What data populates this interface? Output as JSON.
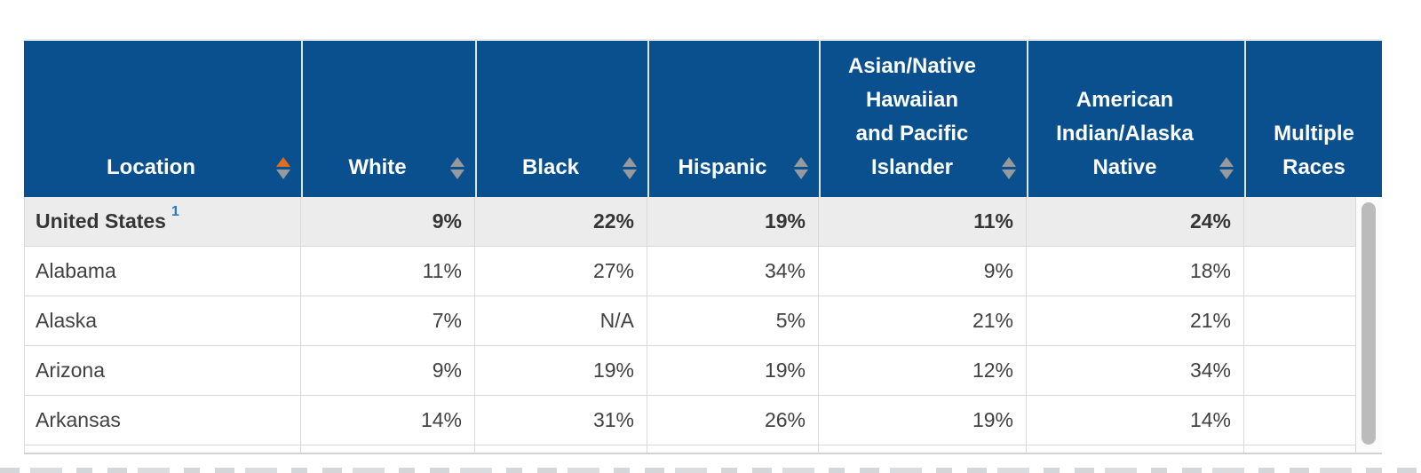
{
  "table": {
    "columns": [
      {
        "label": "Location",
        "sortable": true,
        "sort": "asc"
      },
      {
        "label": "White",
        "sortable": true,
        "sort": "none"
      },
      {
        "label": "Black",
        "sortable": true,
        "sort": "none"
      },
      {
        "label": "Hispanic",
        "sortable": true,
        "sort": "none"
      },
      {
        "label": "Asian/Native\nHawaiian\nand Pacific\nIslander",
        "sortable": true,
        "sort": "none"
      },
      {
        "label": "American\nIndian/Alaska\nNative",
        "sortable": true,
        "sort": "none"
      },
      {
        "label": "Multiple\nRaces",
        "sortable": false,
        "sort": "none"
      }
    ],
    "rows": [
      {
        "location": "United States",
        "footnote_marker": "1",
        "highlight": true,
        "values": [
          "9%",
          "22%",
          "19%",
          "11%",
          "24%",
          ""
        ]
      },
      {
        "location": "Alabama",
        "footnote_marker": "",
        "highlight": false,
        "values": [
          "11%",
          "27%",
          "34%",
          "9%",
          "18%",
          ""
        ]
      },
      {
        "location": "Alaska",
        "footnote_marker": "",
        "highlight": false,
        "values": [
          "7%",
          "N/A",
          "5%",
          "21%",
          "21%",
          ""
        ]
      },
      {
        "location": "Arizona",
        "footnote_marker": "",
        "highlight": false,
        "values": [
          "9%",
          "19%",
          "19%",
          "12%",
          "34%",
          ""
        ]
      },
      {
        "location": "Arkansas",
        "footnote_marker": "",
        "highlight": false,
        "values": [
          "14%",
          "31%",
          "26%",
          "19%",
          "14%",
          ""
        ]
      }
    ],
    "colors": {
      "header_bg": "#0A508E",
      "header_text": "#FFFFFF",
      "alt_row_bg": "#ECECEC",
      "sort_active": "#DD6E1E",
      "sort_inactive": "#97999C",
      "footnote_marker_color": "#2E76B6",
      "cell_text": "#414141",
      "grid_line": "#D9D9D9"
    }
  }
}
